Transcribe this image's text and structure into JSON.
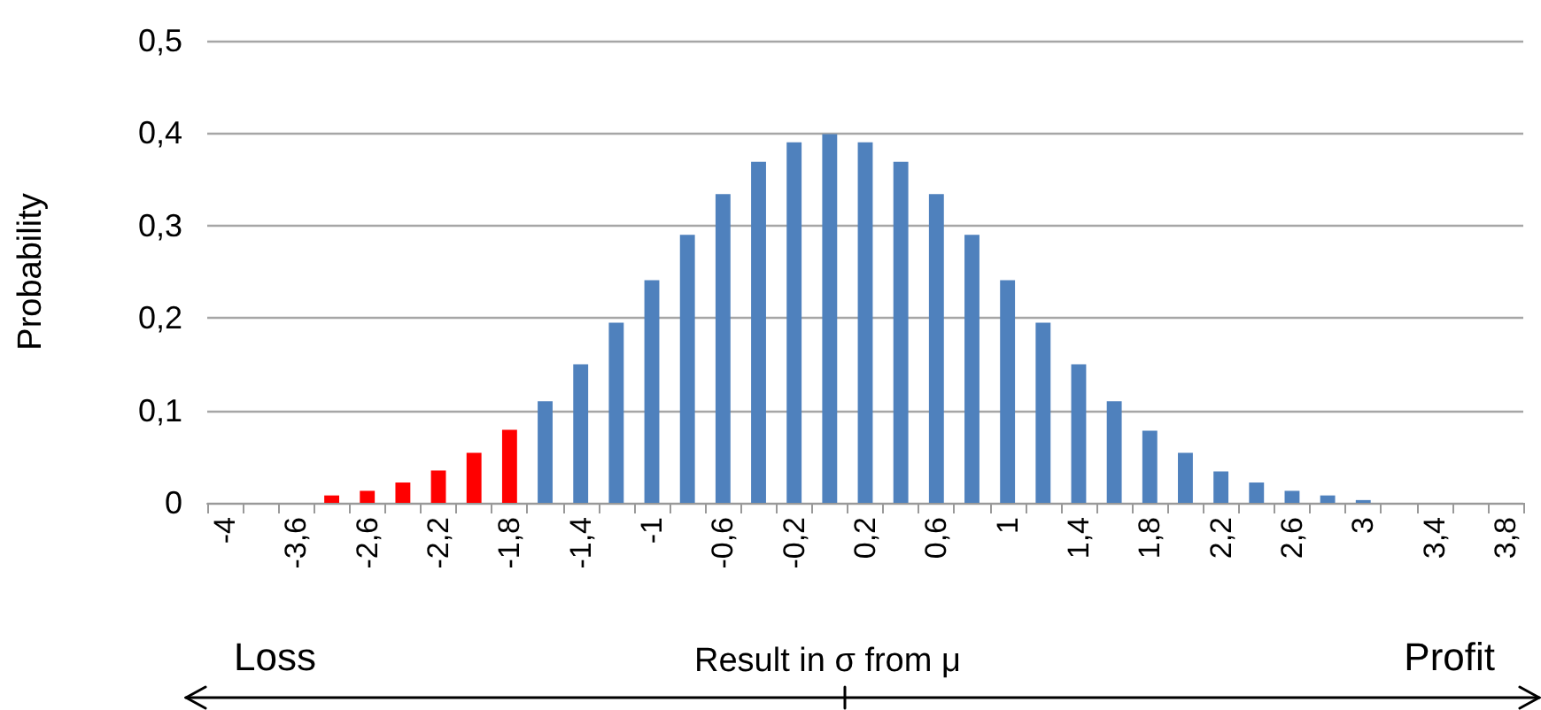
{
  "chart_data": {
    "type": "bar",
    "xlabel": "Result in σ from μ",
    "ylabel": "Probability",
    "annotations": [
      "Loss",
      "Profit"
    ],
    "categories": [
      "-4",
      null,
      "-3,6",
      null,
      "-2,6",
      null,
      "-2,2",
      null,
      "-1,8",
      null,
      "-1,4",
      null,
      "-1",
      null,
      "-0,6",
      null,
      "-0,2",
      null,
      "0,2",
      null,
      "0,6",
      null,
      "1",
      null,
      "1,4",
      null,
      "1,8",
      null,
      "2,2",
      null,
      "2,6",
      null,
      "3",
      null,
      "3,4",
      null,
      "3,8"
    ],
    "values": [
      0,
      0,
      0,
      0.008,
      0.013,
      0.022,
      0.035,
      0.054,
      0.079,
      0.11,
      0.15,
      0.195,
      0.241,
      0.29,
      0.334,
      0.369,
      0.39,
      0.399,
      0.39,
      0.369,
      0.334,
      0.29,
      0.241,
      0.195,
      0.15,
      0.11,
      0.078,
      0.054,
      0.034,
      0.022,
      0.013,
      0.008,
      0.003,
      0,
      0,
      0,
      0
    ],
    "colors": [
      "#4f81bd",
      "#4f81bd",
      "#4f81bd",
      "#ff0000",
      "#ff0000",
      "#ff0000",
      "#ff0000",
      "#ff0000",
      "#ff0000",
      "#4f81bd",
      "#4f81bd",
      "#4f81bd",
      "#4f81bd",
      "#4f81bd",
      "#4f81bd",
      "#4f81bd",
      "#4f81bd",
      "#4f81bd",
      "#4f81bd",
      "#4f81bd",
      "#4f81bd",
      "#4f81bd",
      "#4f81bd",
      "#4f81bd",
      "#4f81bd",
      "#4f81bd",
      "#4f81bd",
      "#4f81bd",
      "#4f81bd",
      "#4f81bd",
      "#4f81bd",
      "#4f81bd",
      "#4f81bd",
      "#4f81bd",
      "#4f81bd",
      "#4f81bd",
      "#4f81bd"
    ],
    "ylim": [
      0,
      0.5
    ],
    "yticks": [
      0,
      {
        "value": 0.1,
        "label": "0,1"
      },
      {
        "value": 0.2,
        "label": "0,2"
      },
      {
        "value": 0.3,
        "label": "0,3"
      },
      {
        "value": 0.4,
        "label": "0,4"
      },
      {
        "value": 0.5,
        "label": "0,5"
      }
    ],
    "grid": "y"
  }
}
